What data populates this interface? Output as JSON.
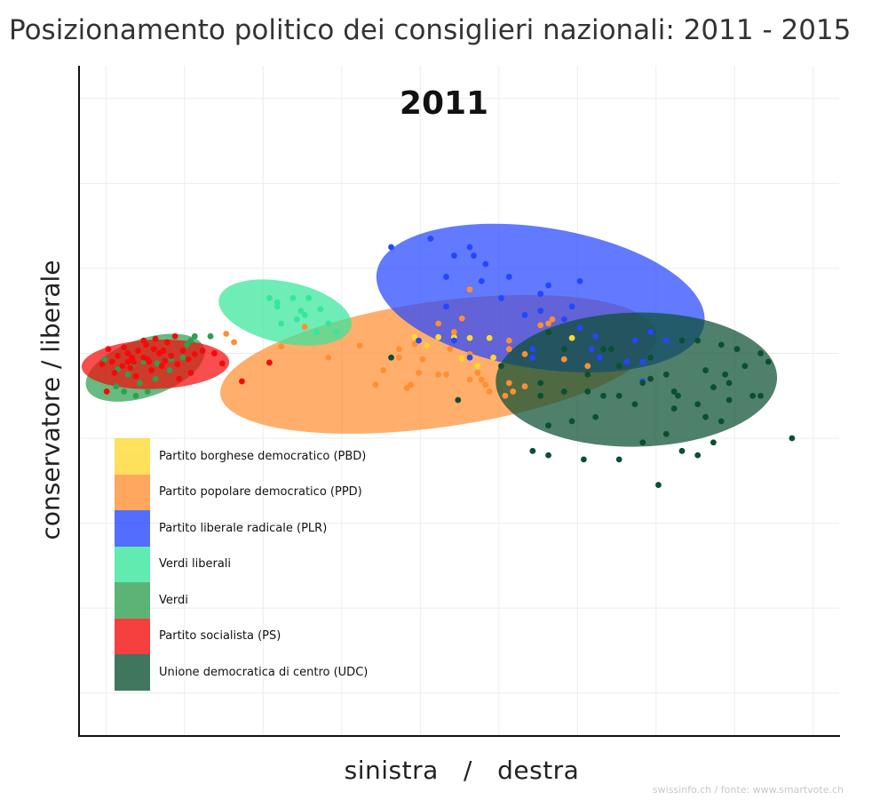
{
  "title": "Posizionamento politico dei consiglieri nazionali: 2011 - 2015",
  "source": "swissinfo.ch / fonte: www.smartvote.ch",
  "chart_data": {
    "type": "scatter",
    "panel_label": "2011",
    "xlabel": "sinistra   /   destra",
    "ylabel": "conservatore / liberale",
    "xlim": [
      0,
      10
    ],
    "ylim": [
      0,
      9
    ],
    "grid": true,
    "legend_position": "bottom-left",
    "series": [
      {
        "name": "Partito borghese democratico (PBD)",
        "color": "#fed830",
        "ellipse": {
          "cx": 5.0,
          "cy": 5.5,
          "rx": 0,
          "ry": 0,
          "rotation": 0
        },
        "points": [
          [
            4.6,
            5.24
          ],
          [
            4.9,
            5.24
          ],
          [
            5.1,
            5.24
          ],
          [
            5.3,
            5.23
          ],
          [
            4.75,
            5.14
          ],
          [
            5.55,
            5.23
          ],
          [
            5.6,
            5.0
          ],
          [
            6.6,
            5.23
          ],
          [
            5.4,
            4.9
          ],
          [
            5.2,
            4.99
          ]
        ]
      },
      {
        "name": "Partito popolare democratico (PPD)",
        "color": "#ff8f33",
        "ellipse": {
          "cx": 4.9,
          "cy": 4.92,
          "rx": 2.8,
          "ry": 0.74,
          "rotation": -8
        },
        "points": [
          [
            2.3,
            5.18
          ],
          [
            2.2,
            5.28
          ],
          [
            2.9,
            5.13
          ],
          [
            3.5,
            5.0
          ],
          [
            3.9,
            5.14
          ],
          [
            4.4,
            5.1
          ],
          [
            4.6,
            5.16
          ],
          [
            5.05,
            5.1
          ],
          [
            5.3,
            5.04
          ],
          [
            4.7,
            4.98
          ],
          [
            4.2,
            4.85
          ],
          [
            4.9,
            4.8
          ],
          [
            5.3,
            4.74
          ],
          [
            5.45,
            4.74
          ],
          [
            5.5,
            4.68
          ],
          [
            5.0,
            4.8
          ],
          [
            5.1,
            5.3
          ],
          [
            5.8,
            5.1
          ],
          [
            6.0,
            5.04
          ],
          [
            6.5,
            4.98
          ],
          [
            6.8,
            4.9
          ],
          [
            6.3,
            5.4
          ],
          [
            6.0,
            4.66
          ],
          [
            5.4,
            4.82
          ],
          [
            4.1,
            4.68
          ],
          [
            4.55,
            4.68
          ],
          [
            3.2,
            5.36
          ],
          [
            4.4,
            5.0
          ],
          [
            4.65,
            4.82
          ],
          [
            5.2,
            5.46
          ],
          [
            5.8,
            4.7
          ],
          [
            5.85,
            4.6
          ],
          [
            6.35,
            5.45
          ],
          [
            6.2,
            5.38
          ],
          [
            5.55,
            4.6
          ],
          [
            4.9,
            5.4
          ],
          [
            5.8,
            5.2
          ],
          [
            5.3,
            5.8
          ],
          [
            4.5,
            4.64
          ],
          [
            5.75,
            4.55
          ]
        ]
      },
      {
        "name": "Partito liberale radicale (PLR)",
        "color": "#2446ff",
        "ellipse": {
          "cx": 6.2,
          "cy": 5.7,
          "rx": 2.11,
          "ry": 0.83,
          "rotation": 9
        },
        "points": [
          [
            4.3,
            6.3
          ],
          [
            4.8,
            6.4
          ],
          [
            5.1,
            6.2
          ],
          [
            5.3,
            6.3
          ],
          [
            5.35,
            6.2
          ],
          [
            5.5,
            6.1
          ],
          [
            5.45,
            5.9
          ],
          [
            5.0,
            5.95
          ],
          [
            5.8,
            5.95
          ],
          [
            6.2,
            5.75
          ],
          [
            6.7,
            5.9
          ],
          [
            5.7,
            5.7
          ],
          [
            5.0,
            5.6
          ],
          [
            6.0,
            5.5
          ],
          [
            6.5,
            5.45
          ],
          [
            6.7,
            5.35
          ],
          [
            6.85,
            5.1
          ],
          [
            6.1,
            5.0
          ],
          [
            5.3,
            5.0
          ],
          [
            6.95,
            5.0
          ],
          [
            7.8,
            5.2
          ],
          [
            4.65,
            5.2
          ],
          [
            5.1,
            5.2
          ],
          [
            6.9,
            5.25
          ],
          [
            6.1,
            5.1
          ],
          [
            7.3,
            4.95
          ],
          [
            7.5,
            4.95
          ],
          [
            7.5,
            4.72
          ],
          [
            6.6,
            5.6
          ],
          [
            6.3,
            5.85
          ],
          [
            7.6,
            5.3
          ],
          [
            6.2,
            5.55
          ],
          [
            7.4,
            5.2
          ]
        ]
      },
      {
        "name": "Verdi liberali",
        "color": "#36e69b",
        "ellipse": {
          "cx": 2.95,
          "cy": 5.53,
          "rx": 0.86,
          "ry": 0.36,
          "rotation": 12
        },
        "points": [
          [
            2.75,
            5.7
          ],
          [
            2.85,
            5.6
          ],
          [
            3.05,
            5.7
          ],
          [
            3.25,
            5.7
          ],
          [
            3.15,
            5.55
          ],
          [
            2.9,
            5.4
          ],
          [
            3.1,
            5.45
          ],
          [
            3.35,
            5.3
          ],
          [
            3.5,
            5.4
          ],
          [
            3.2,
            5.5
          ],
          [
            3.6,
            5.3
          ],
          [
            2.85,
            5.65
          ],
          [
            3.4,
            5.57
          ]
        ]
      },
      {
        "name": "Verdi",
        "color": "#2ea050",
        "ellipse": {
          "cx": 1.17,
          "cy": 4.88,
          "rx": 0.79,
          "ry": 0.34,
          "rotation": -19
        },
        "points": [
          [
            0.65,
            4.98
          ],
          [
            0.82,
            4.86
          ],
          [
            0.95,
            4.8
          ],
          [
            1.0,
            4.9
          ],
          [
            1.15,
            4.95
          ],
          [
            1.32,
            4.93
          ],
          [
            1.5,
            4.98
          ],
          [
            1.65,
            5.0
          ],
          [
            1.75,
            5.2
          ],
          [
            2.0,
            5.25
          ],
          [
            0.8,
            4.66
          ],
          [
            1.1,
            4.7
          ],
          [
            1.3,
            4.75
          ],
          [
            1.2,
            4.6
          ],
          [
            1.05,
            4.55
          ],
          [
            0.9,
            4.6
          ],
          [
            1.7,
            5.15
          ],
          [
            1.8,
            5.25
          ],
          [
            1.48,
            4.85
          ]
        ]
      },
      {
        "name": "Partito socialista (PS)",
        "color": "#f40a0a",
        "ellipse": {
          "cx": 1.3,
          "cy": 4.92,
          "rx": 0.94,
          "ry": 0.29,
          "rotation": -2
        },
        "points": [
          [
            0.62,
            4.92
          ],
          [
            0.75,
            4.95
          ],
          [
            0.82,
            5.02
          ],
          [
            0.88,
            4.9
          ],
          [
            0.95,
            5.05
          ],
          [
            1.02,
            4.95
          ],
          [
            1.08,
            5.08
          ],
          [
            1.15,
            5.0
          ],
          [
            1.22,
            4.95
          ],
          [
            1.28,
            5.1
          ],
          [
            1.35,
            5.05
          ],
          [
            1.42,
            4.96
          ],
          [
            1.5,
            5.02
          ],
          [
            1.58,
            4.92
          ],
          [
            1.65,
            5.08
          ],
          [
            1.72,
            4.98
          ],
          [
            1.8,
            5.04
          ],
          [
            1.9,
            5.08
          ],
          [
            0.7,
            5.1
          ],
          [
            0.9,
            5.12
          ],
          [
            1.18,
            5.15
          ],
          [
            1.45,
            5.18
          ],
          [
            1.3,
            5.22
          ],
          [
            1.25,
            4.85
          ],
          [
            1.05,
            4.78
          ],
          [
            0.98,
            4.88
          ],
          [
            1.6,
            4.75
          ],
          [
            2.05,
            5.05
          ],
          [
            2.15,
            4.93
          ],
          [
            1.75,
            4.82
          ],
          [
            0.68,
            4.6
          ],
          [
            0.78,
            4.82
          ],
          [
            1.55,
            5.25
          ],
          [
            1.2,
            4.98
          ],
          [
            1.15,
            5.2
          ],
          [
            1.38,
            4.9
          ],
          [
            0.95,
            4.95
          ],
          [
            2.4,
            4.72
          ],
          [
            2.75,
            4.94
          ],
          [
            1.4,
            5.08
          ],
          [
            1.0,
            5.0
          ]
        ]
      },
      {
        "name": "Unione democratica di centro (UDC)",
        "color": "#0b4f32",
        "ellipse": {
          "cx": 7.42,
          "cy": 4.74,
          "rx": 1.79,
          "ry": 0.79,
          "rotation": -1
        },
        "points": [
          [
            6.3,
            5.3
          ],
          [
            6.5,
            5.1
          ],
          [
            6.8,
            4.8
          ],
          [
            7.1,
            5.1
          ],
          [
            7.2,
            4.9
          ],
          [
            7.6,
            5.0
          ],
          [
            8.0,
            5.2
          ],
          [
            8.2,
            5.2
          ],
          [
            8.5,
            5.15
          ],
          [
            8.7,
            5.1
          ],
          [
            9.0,
            5.05
          ],
          [
            9.1,
            4.95
          ],
          [
            8.8,
            4.9
          ],
          [
            8.55,
            4.8
          ],
          [
            8.3,
            4.85
          ],
          [
            7.8,
            4.8
          ],
          [
            7.5,
            4.7
          ],
          [
            7.2,
            4.55
          ],
          [
            6.8,
            4.6
          ],
          [
            6.5,
            4.6
          ],
          [
            6.2,
            4.7
          ],
          [
            7.9,
            4.6
          ],
          [
            8.4,
            4.65
          ],
          [
            8.6,
            4.7
          ],
          [
            8.9,
            4.55
          ],
          [
            8.2,
            4.45
          ],
          [
            7.9,
            4.4
          ],
          [
            7.4,
            4.45
          ],
          [
            6.9,
            4.3
          ],
          [
            6.6,
            4.25
          ],
          [
            6.3,
            4.2
          ],
          [
            7.8,
            4.1
          ],
          [
            7.5,
            4.0
          ],
          [
            8.4,
            4.0
          ],
          [
            8.0,
            3.9
          ],
          [
            8.2,
            3.85
          ],
          [
            7.2,
            3.8
          ],
          [
            6.75,
            3.8
          ],
          [
            7.7,
            3.5
          ],
          [
            6.1,
            3.9
          ],
          [
            6.3,
            3.85
          ],
          [
            9.4,
            4.05
          ],
          [
            9.0,
            4.55
          ],
          [
            8.6,
            4.5
          ],
          [
            8.3,
            4.3
          ],
          [
            7.6,
            4.75
          ],
          [
            8.5,
            4.25
          ],
          [
            7.95,
            4.55
          ],
          [
            7.0,
            4.55
          ],
          [
            5.7,
            4.9
          ],
          [
            5.15,
            4.5
          ],
          [
            4.3,
            5.0
          ],
          [
            7.0,
            5.1
          ],
          [
            6.2,
            4.55
          ]
        ]
      }
    ]
  }
}
